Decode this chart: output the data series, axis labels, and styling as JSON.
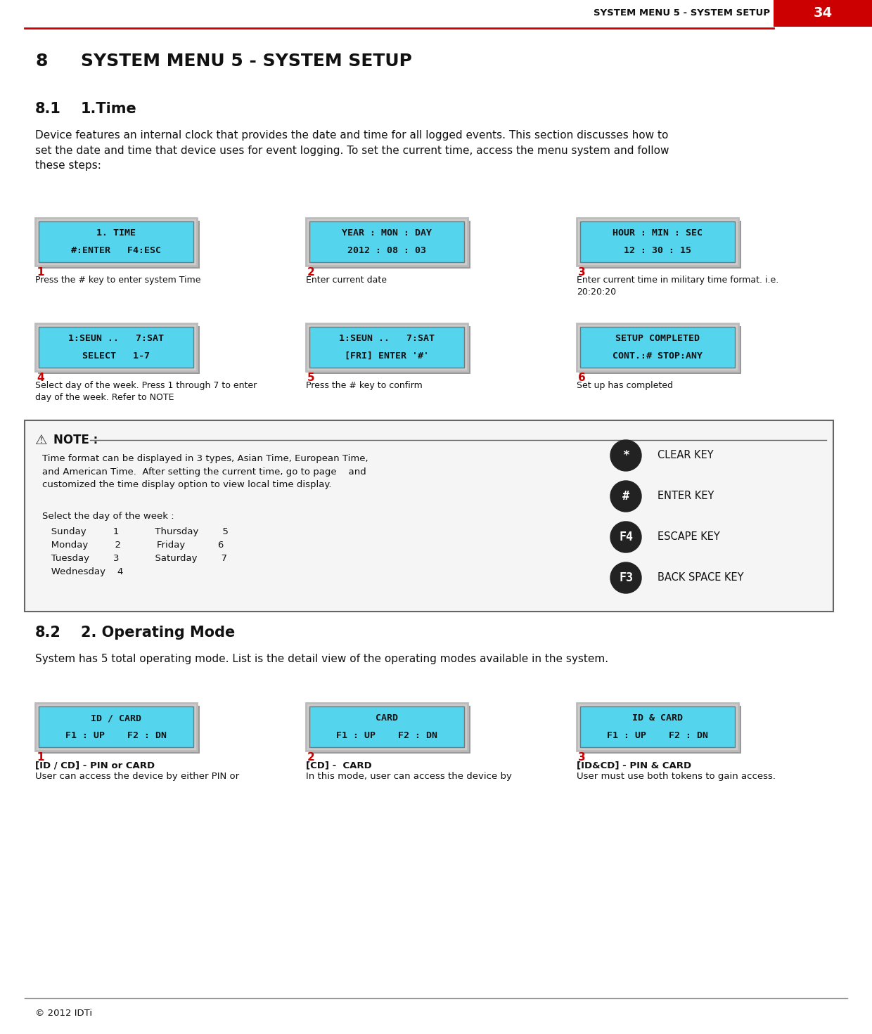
{
  "header_text": "SYSTEM MENU 5 - SYSTEM SETUP",
  "page_num": "34",
  "header_bg": "#cc0000",
  "line_color": "#cc0000",
  "screen_bg": "#55d4ee",
  "screen_border": "#aaaaaa",
  "screens_row1": [
    {
      "line1": "1. TIME",
      "line2": "#:ENTER   F4:ESC",
      "num": "1",
      "caption": "Press the # key to enter system Time"
    },
    {
      "line1": "YEAR : MON : DAY",
      "line2": "2012 : 08 : 03",
      "num": "2",
      "caption": "Enter current date"
    },
    {
      "line1": "HOUR : MIN : SEC",
      "line2": "12 : 30 : 15",
      "num": "3",
      "caption": "Enter current time in military time format. i.e.\n20:20:20"
    }
  ],
  "screens_row2": [
    {
      "line1": "1:SEUN ..   7:SAT",
      "line2": "SELECT   1-7",
      "num": "4",
      "caption": "Select day of the week. Press 1 through 7 to enter\nday of the week. Refer to NOTE"
    },
    {
      "line1": "1:SEUN ..   7:SAT",
      "line2": "[FRI] ENTER '#'",
      "num": "5",
      "caption": "Press the # key to confirm"
    },
    {
      "line1": "SETUP COMPLETED",
      "line2": "CONT.:# STOP:ANY",
      "num": "6",
      "caption": "Set up has completed"
    }
  ],
  "key_symbols": [
    {
      "symbol": "*",
      "label": "CLEAR KEY"
    },
    {
      "symbol": "#",
      "label": "ENTER KEY"
    },
    {
      "symbol": "F4",
      "label": "ESCAPE KEY"
    },
    {
      "symbol": "F3",
      "label": "BACK SPACE KEY"
    }
  ],
  "screens_row3": [
    {
      "line1": "ID / CARD",
      "line2": "F1 : UP    F2 : DN",
      "num": "1",
      "cap_bold": "[ID / CD] - PIN or CARD",
      "caption": "User can access the device by either PIN or"
    },
    {
      "line1": "CARD",
      "line2": "F1 : UP    F2 : DN",
      "num": "2",
      "cap_bold": "[CD] -  CARD",
      "caption": "In this mode, user can access the device by"
    },
    {
      "line1": "ID & CARD",
      "line2": "F1 : UP    F2 : DN",
      "num": "3",
      "cap_bold": "[ID&CD] - PIN & CARD",
      "caption": "User must use both tokens to gain access."
    }
  ],
  "footer_text": "© 2012 IDTi",
  "bg_color": "#ffffff"
}
